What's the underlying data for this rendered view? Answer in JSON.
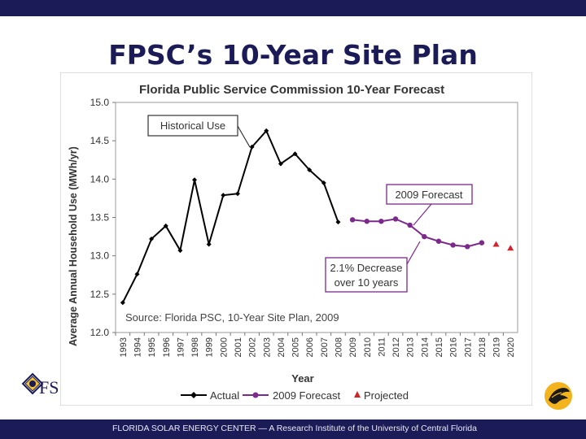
{
  "slide": {
    "title": "FPSC’s 10-Year Site Plan",
    "footer": "FLORIDA SOLAR ENERGY CENTER — A Research Institute of the University of Central Florida",
    "logo_left_text": "FS"
  },
  "colors": {
    "bar": "#1b1b57",
    "actual": "#000000",
    "forecast": "#7b2a8c",
    "projected": "#d1232a",
    "callout_border": "#7b2a8c"
  },
  "chart_data": {
    "type": "line",
    "title": "Florida Public Service Commission 10-Year Forecast",
    "xlabel": "Year",
    "ylabel": "Average Annual Household Use (MWh/yr)",
    "ylim": [
      12.0,
      15.0
    ],
    "yticks": [
      "12.0",
      "12.5",
      "13.0",
      "13.5",
      "14.0",
      "14.5",
      "15.0"
    ],
    "categories": [
      "1993",
      "1994",
      "1995",
      "1996",
      "1997",
      "1998",
      "1999",
      "2000",
      "2001",
      "2002",
      "2003",
      "2004",
      "2005",
      "2006",
      "2007",
      "2008",
      "2009",
      "2010",
      "2011",
      "2012",
      "2013",
      "2014",
      "2015",
      "2016",
      "2017",
      "2018",
      "2019",
      "2020"
    ],
    "series": [
      {
        "name": "Actual",
        "x": [
          "1993",
          "1994",
          "1995",
          "1996",
          "1997",
          "1998",
          "1999",
          "2000",
          "2001",
          "2002",
          "2003",
          "2004",
          "2005",
          "2006",
          "2007",
          "2008"
        ],
        "values": [
          12.39,
          12.76,
          13.22,
          13.39,
          13.07,
          13.99,
          13.15,
          13.79,
          13.81,
          14.42,
          14.63,
          14.2,
          14.33,
          14.12,
          13.95,
          13.44
        ]
      },
      {
        "name": "2009 Forecast",
        "x": [
          "2009",
          "2010",
          "2011",
          "2012",
          "2013",
          "2014",
          "2015",
          "2016",
          "2017",
          "2018"
        ],
        "values": [
          13.47,
          13.45,
          13.45,
          13.48,
          13.4,
          13.25,
          13.19,
          13.14,
          13.12,
          13.17
        ]
      },
      {
        "name": "Projected",
        "x": [
          "2019",
          "2020"
        ],
        "values": [
          13.15,
          13.1
        ]
      }
    ],
    "annotations": {
      "historical": "Historical Use",
      "forecast": "2009 Forecast",
      "decrease_line1": "2.1% Decrease",
      "decrease_line2": "over 10 years",
      "source": "Source:  Florida PSC, 10-Year Site Plan, 2009"
    },
    "legend_position": "bottom"
  }
}
